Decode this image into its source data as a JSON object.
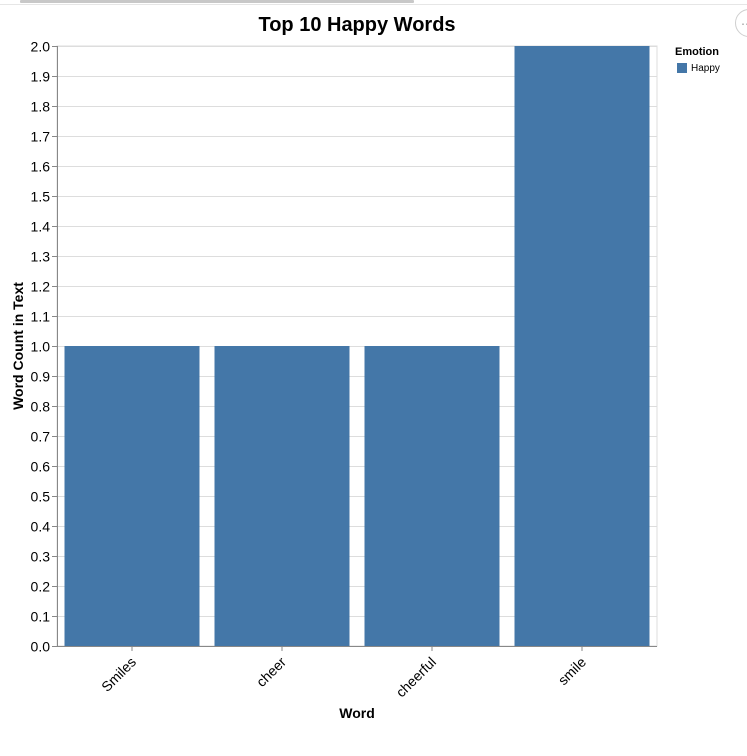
{
  "chart_data": {
    "type": "bar",
    "title": "Top 10 Happy Words",
    "xlabel": "Word",
    "ylabel": "Word Count in Text",
    "categories": [
      "Smiles",
      "cheer",
      "cheerful",
      "smile"
    ],
    "values": [
      1,
      1,
      1,
      2
    ],
    "ylim": [
      0,
      2
    ],
    "yticks": [
      "0.0",
      "0.1",
      "0.2",
      "0.3",
      "0.4",
      "0.5",
      "0.6",
      "0.7",
      "0.8",
      "0.9",
      "1.0",
      "1.1",
      "1.2",
      "1.3",
      "1.4",
      "1.5",
      "1.6",
      "1.7",
      "1.8",
      "1.9",
      "2.0"
    ],
    "grid": true,
    "legend": {
      "title": "Emotion",
      "placement": "top-right",
      "entries": [
        {
          "label": "Happy",
          "color": "#4477a8"
        }
      ]
    },
    "bar_color": "#4477a8"
  },
  "actions_icon": "ellipsis-icon"
}
